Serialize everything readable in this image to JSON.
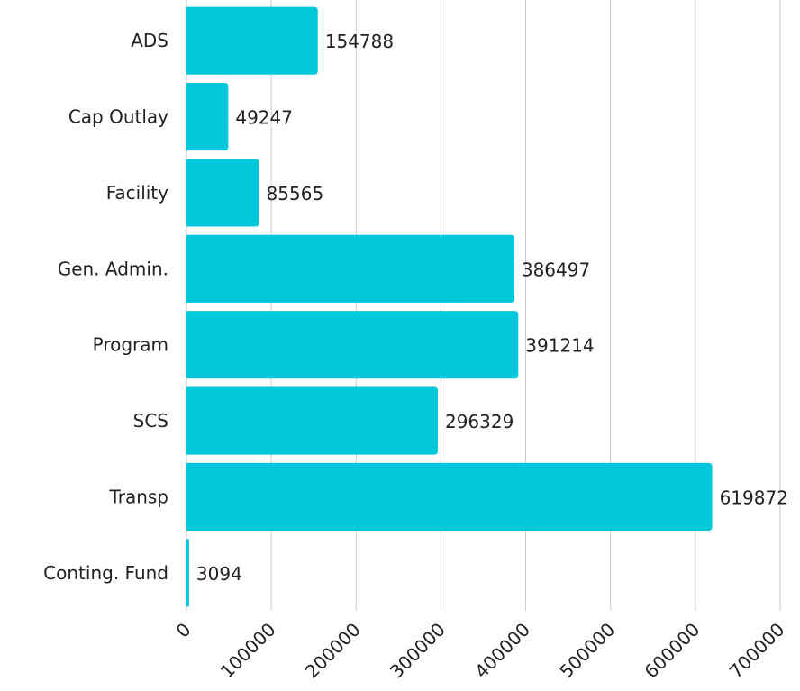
{
  "chart_data": {
    "type": "bar",
    "orientation": "horizontal",
    "categories": [
      "ADS",
      "Cap Outlay",
      "Facility",
      "Gen. Admin.",
      "Program",
      "SCS",
      "Transp",
      "Conting. Fund"
    ],
    "values": [
      154788,
      49247,
      85565,
      386497,
      391214,
      296329,
      619872,
      3094
    ],
    "color": "#00c8da",
    "xlim": [
      0,
      700000
    ],
    "xticks": [
      0,
      100000,
      200000,
      300000,
      400000,
      500000,
      600000,
      700000
    ],
    "grid": true
  }
}
